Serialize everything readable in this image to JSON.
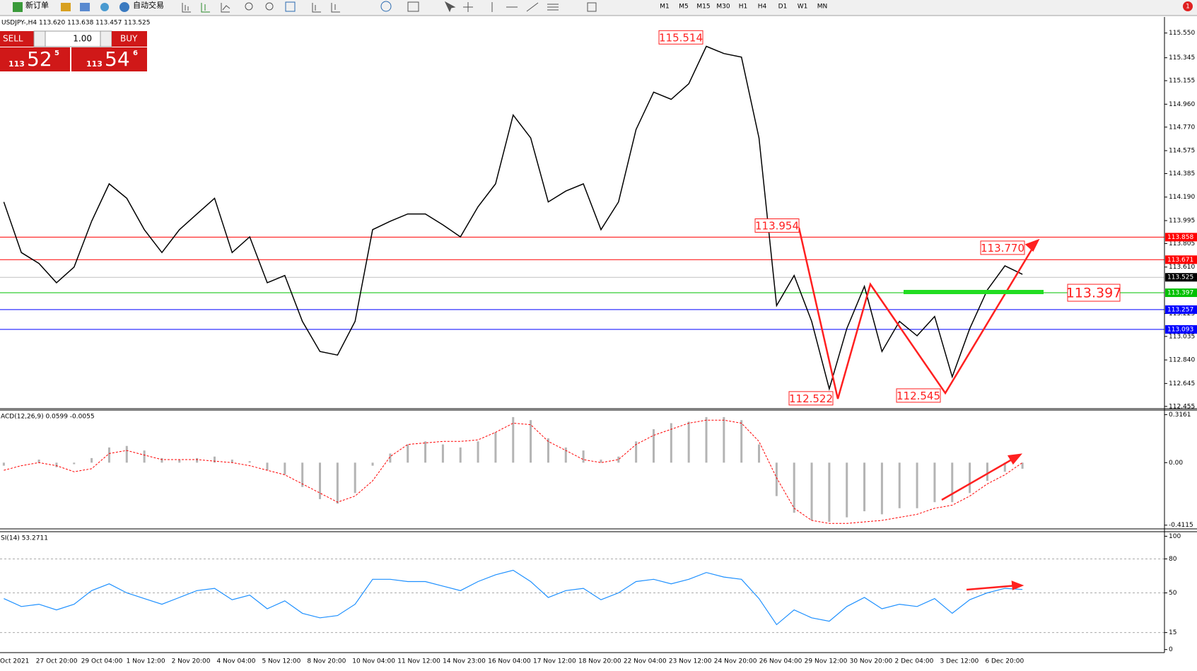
{
  "toolbar": {
    "new_order": "新订单",
    "auto_trading": "自动交易",
    "timeframes": [
      "M1",
      "M5",
      "M15",
      "M30",
      "H1",
      "H4",
      "D1",
      "W1",
      "MN"
    ],
    "alerts": "1"
  },
  "trade_panel": {
    "sell": "SELL",
    "buy": "BUY",
    "lots": "1.00",
    "bid": {
      "big": "113",
      "pips": "52",
      "fraction": "5"
    },
    "ask": {
      "big": "113",
      "pips": "54",
      "fraction": "6"
    }
  },
  "chart_data": [
    {
      "type": "line",
      "title": "USDJPY-,H4  113.620 113.638 113.457 113.525",
      "color": "#000000",
      "values": [
        114.15,
        113.73,
        113.64,
        113.48,
        113.61,
        113.99,
        114.3,
        114.18,
        113.92,
        113.73,
        113.92,
        114.05,
        114.18,
        113.73,
        113.86,
        113.48,
        113.54,
        113.16,
        112.91,
        112.88,
        113.16,
        113.92,
        113.99,
        114.05,
        114.05,
        113.96,
        113.86,
        114.11,
        114.3,
        114.87,
        114.68,
        114.15,
        114.24,
        114.3,
        113.92,
        114.15,
        114.75,
        115.06,
        115.0,
        115.13,
        115.44,
        115.38,
        115.35,
        114.68,
        113.29,
        113.54,
        113.16,
        112.6,
        113.1,
        113.45,
        112.91,
        113.16,
        113.04,
        113.2,
        112.7,
        113.1,
        113.42,
        113.62,
        113.55
      ],
      "ylim": [
        112.436,
        115.683
      ],
      "yticks": [
        {
          "value": 115.55,
          "label": "115.550"
        },
        {
          "value": 115.345,
          "label": "115.345"
        },
        {
          "value": 115.155,
          "label": "115.155"
        },
        {
          "value": 114.96,
          "label": "114.960"
        },
        {
          "value": 114.77,
          "label": "114.770"
        },
        {
          "value": 114.575,
          "label": "114.575"
        },
        {
          "value": 114.385,
          "label": "114.385"
        },
        {
          "value": 114.19,
          "label": "114.190"
        },
        {
          "value": 113.995,
          "label": "113.995"
        },
        {
          "value": 113.805,
          "label": "113.805"
        },
        {
          "value": 113.61,
          "label": "113.610"
        },
        {
          "value": 113.225,
          "label": "113.225"
        },
        {
          "value": 113.035,
          "label": "113.035"
        },
        {
          "value": 112.84,
          "label": "112.840"
        },
        {
          "value": 112.645,
          "label": "112.645"
        },
        {
          "value": 112.455,
          "label": "112.455"
        }
      ],
      "levels": [
        {
          "value": 113.858,
          "label": "113.858",
          "color": "#ff0000",
          "line_color": "#ff0000"
        },
        {
          "value": 113.671,
          "label": "113.671",
          "color": "#ff0000",
          "line_color": "#ff0000"
        },
        {
          "value": 113.525,
          "label": "113.525",
          "color": "#000000",
          "line_color": "#c0c0c0"
        },
        {
          "value": 113.397,
          "label": "113.397",
          "color": "#00c000",
          "line_color": "#00c000"
        },
        {
          "value": 113.257,
          "label": "113.257",
          "color": "#0000ff",
          "line_color": "#0000ff"
        },
        {
          "value": 113.093,
          "label": "113.093",
          "color": "#0000ff",
          "line_color": "#0000ff"
        }
      ],
      "annotations": [
        {
          "value": 115.514,
          "label": "115.514"
        },
        {
          "value": 113.954,
          "label": "113.954"
        },
        {
          "value": 112.522,
          "label": "112.522"
        },
        {
          "value": 112.545,
          "label": "112.545"
        },
        {
          "value": 113.77,
          "label": "113.770"
        },
        {
          "value": 113.397,
          "label": "113.397"
        }
      ],
      "xtick_labels": [
        "Oct 2021",
        "27 Oct 20:00",
        "29 Oct 04:00",
        "1 Nov 12:00",
        "2 Nov 20:00",
        "4 Nov 04:00",
        "5 Nov 12:00",
        "8 Nov 20:00",
        "10 Nov 04:00",
        "11 Nov 12:00",
        "14 Nov 23:00",
        "16 Nov 04:00",
        "17 Nov 12:00",
        "18 Nov 20:00",
        "22 Nov 04:00",
        "23 Nov 12:00",
        "24 Nov 20:00",
        "26 Nov 04:00",
        "29 Nov 12:00",
        "30 Nov 20:00",
        "2 Dec 04:00",
        "3 Dec 12:00",
        "6 Dec 20:00"
      ]
    },
    {
      "type": "macd",
      "title": "ACD(12,26,9) 0.0599 -0.0055",
      "color": "#b4b4b4",
      "signal_color": "#ff0000",
      "values": [
        -0.02,
        0.0,
        0.02,
        -0.03,
        -0.01,
        0.03,
        0.1,
        0.11,
        0.08,
        0.03,
        0.02,
        0.03,
        0.04,
        0.02,
        0.01,
        -0.05,
        -0.08,
        -0.16,
        -0.24,
        -0.27,
        -0.2,
        -0.02,
        0.06,
        0.12,
        0.14,
        0.12,
        0.1,
        0.14,
        0.2,
        0.3,
        0.28,
        0.16,
        0.1,
        0.08,
        0.02,
        0.04,
        0.14,
        0.22,
        0.26,
        0.27,
        0.3,
        0.3,
        0.28,
        0.12,
        -0.22,
        -0.33,
        -0.38,
        -0.39,
        -0.36,
        -0.32,
        -0.34,
        -0.3,
        -0.3,
        -0.26,
        -0.26,
        -0.2,
        -0.12,
        -0.06,
        -0.04
      ],
      "signal": [
        -0.05,
        -0.02,
        0.0,
        -0.02,
        -0.06,
        -0.04,
        0.06,
        0.08,
        0.05,
        0.02,
        0.02,
        0.02,
        0.01,
        0.0,
        -0.02,
        -0.05,
        -0.08,
        -0.14,
        -0.2,
        -0.26,
        -0.22,
        -0.12,
        0.04,
        0.12,
        0.13,
        0.14,
        0.14,
        0.15,
        0.2,
        0.26,
        0.25,
        0.14,
        0.08,
        0.02,
        0.0,
        0.02,
        0.12,
        0.18,
        0.22,
        0.26,
        0.28,
        0.28,
        0.26,
        0.14,
        -0.1,
        -0.3,
        -0.38,
        -0.4,
        -0.4,
        -0.39,
        -0.38,
        -0.36,
        -0.34,
        -0.3,
        -0.28,
        -0.22,
        -0.14,
        -0.08,
        0.0
      ],
      "ylim": [
        -0.436,
        0.346
      ],
      "yticks": [
        0.3161,
        {
          "value": 0,
          "label": "0.00"
        },
        -0.4115
      ]
    },
    {
      "type": "rsi",
      "title": "SI(14) 53.2711",
      "color": "#1e90ff",
      "values": [
        45,
        38,
        40,
        35,
        40,
        52,
        58,
        50,
        45,
        40,
        46,
        52,
        54,
        44,
        48,
        36,
        43,
        32,
        28,
        30,
        40,
        62,
        62,
        60,
        60,
        56,
        52,
        60,
        66,
        70,
        60,
        46,
        52,
        54,
        44,
        50,
        60,
        62,
        58,
        62,
        68,
        64,
        62,
        45,
        22,
        35,
        28,
        25,
        38,
        46,
        36,
        40,
        38,
        45,
        32,
        44,
        50,
        54,
        53
      ],
      "ylim": [
        -2.7,
        104
      ],
      "yticks": [
        100,
        80,
        50,
        15,
        0
      ],
      "levels": [
        80,
        50,
        15
      ]
    }
  ]
}
